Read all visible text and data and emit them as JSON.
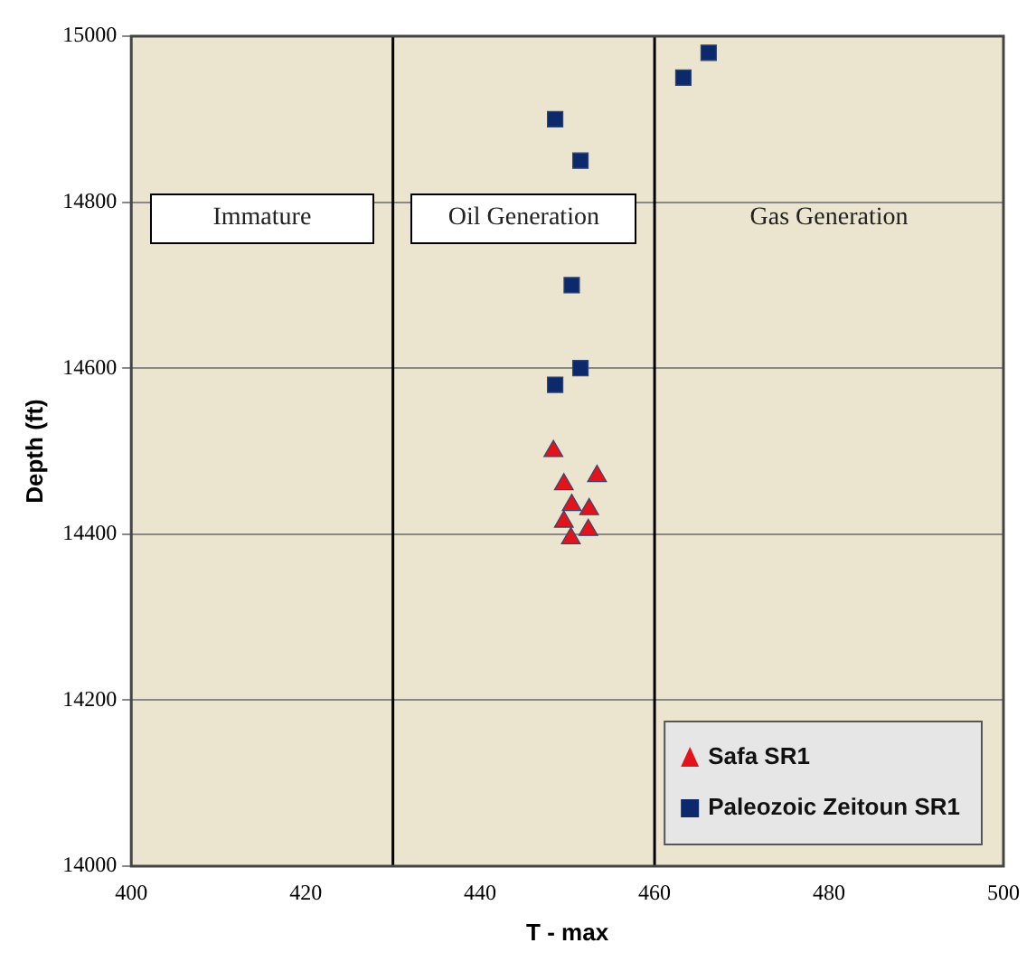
{
  "chart_data": {
    "type": "scatter",
    "xlabel": "T - max",
    "ylabel": "Depth (ft)",
    "xlim": [
      400,
      500
    ],
    "xticks": [
      400,
      420,
      440,
      460,
      480,
      500
    ],
    "ylim": [
      14000,
      15000
    ],
    "yticks": [
      14000,
      14200,
      14400,
      14600,
      14800,
      15000
    ],
    "grid": "y",
    "legend": "bottom right",
    "series": [
      {
        "name": "Safa SR1",
        "color": "#e3131b",
        "marker": "triangle",
        "x": [
          448.4,
          449.6,
          453.4,
          450.5,
          452.5,
          449.6,
          452.4,
          450.4
        ],
        "values": [
          14500,
          14460,
          14470,
          14435,
          14430,
          14415,
          14405,
          14395
        ]
      },
      {
        "name": "Paleozoic Zeitoun SR1",
        "color": "#0c2a6b",
        "marker": "square",
        "x": [
          448.6,
          451.5,
          450.5,
          451.5,
          448.6,
          463.3,
          466.2
        ],
        "values": [
          14900,
          14850,
          14700,
          14600,
          14580,
          14950,
          14980
        ]
      }
    ],
    "ref_lines": [
      {
        "axis": "x",
        "value": 430,
        "color": "#000000"
      },
      {
        "axis": "x",
        "value": 460,
        "color": "#000000"
      }
    ],
    "annotations": [
      "Immature",
      "Oil Generation",
      "Gas Generation"
    ]
  }
}
